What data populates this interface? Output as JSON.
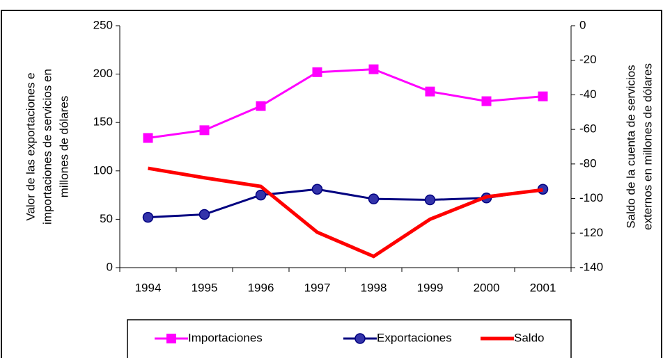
{
  "chart_data": {
    "type": "line",
    "categories": [
      "1994",
      "1995",
      "1996",
      "1997",
      "1998",
      "1999",
      "2000",
      "2001"
    ],
    "ylabel": [
      "Valor de las exportaciones e",
      "importaciones de servicios en",
      "millones de dólares"
    ],
    "y2label": [
      "Saldo de la cuenta de servicios",
      "externos en millones de dólares"
    ],
    "ylim": [
      0,
      250
    ],
    "yticks": [
      0,
      50,
      100,
      150,
      200,
      250
    ],
    "y2lim": [
      -140,
      0
    ],
    "y2ticks": [
      -140,
      -120,
      -100,
      -80,
      -60,
      -40,
      -20,
      0
    ],
    "series": [
      {
        "name": "Importaciones",
        "color": "#ff00ff",
        "marker": "square",
        "values": [
          134,
          142,
          167,
          202,
          205,
          182,
          172,
          177
        ]
      },
      {
        "name": "Exportaciones",
        "color": "#000080",
        "marker": "circle",
        "values": [
          52,
          55,
          75,
          81,
          71,
          70,
          72,
          81
        ]
      },
      {
        "name": "Saldo",
        "color": "#ff0000",
        "marker": "none",
        "axis": "y2",
        "values": [
          -82.5,
          -88,
          -93,
          -119.5,
          -133.5,
          -112,
          -99,
          -95
        ]
      }
    ]
  }
}
